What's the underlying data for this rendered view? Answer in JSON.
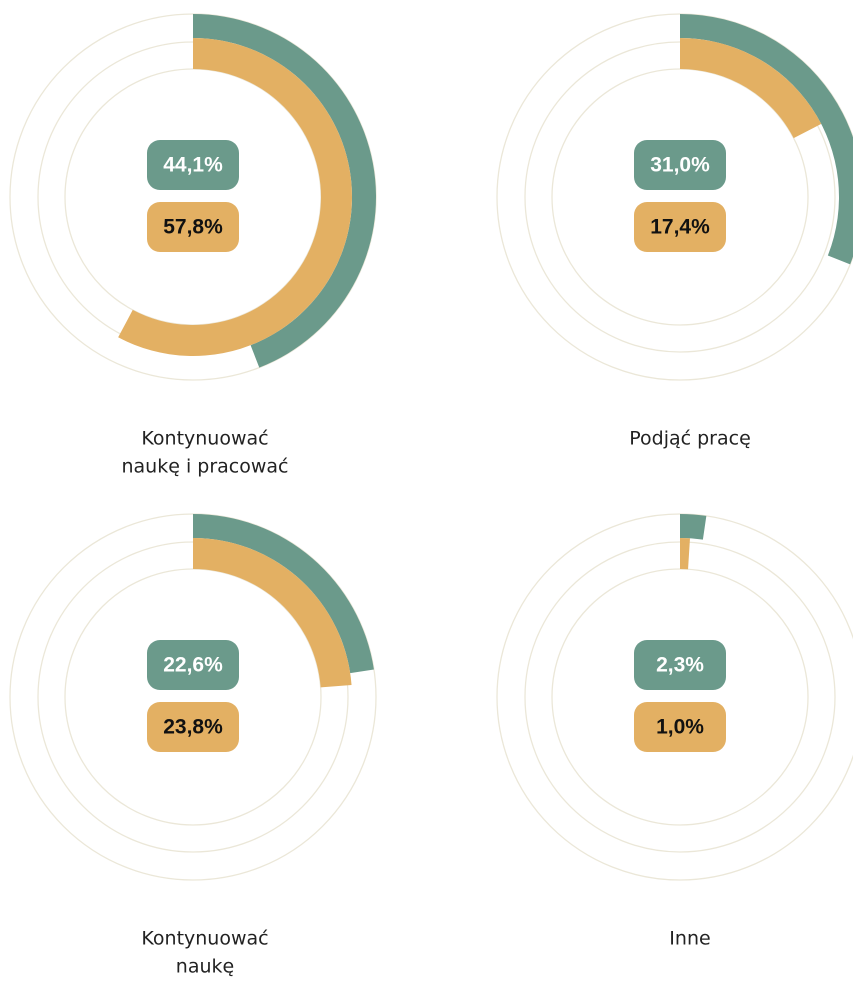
{
  "chart_data": [
    {
      "type": "radial",
      "label": [
        "Kontynuować",
        "naukę i pracować"
      ],
      "values": [
        44.1,
        57.8
      ],
      "value_labels": [
        "44,1%",
        "57,8%"
      ],
      "colors": [
        "#6b9a8b",
        "#e3b063"
      ],
      "ylim": [
        0,
        100
      ]
    },
    {
      "type": "radial",
      "label": [
        "Podjąć pracę"
      ],
      "values": [
        31.0,
        17.4
      ],
      "value_labels": [
        "31,0%",
        "17,4%"
      ],
      "colors": [
        "#6b9a8b",
        "#e3b063"
      ],
      "ylim": [
        0,
        100
      ]
    },
    {
      "type": "radial",
      "label": [
        "Kontynuować",
        "naukę"
      ],
      "values": [
        22.6,
        23.8
      ],
      "value_labels": [
        "22,6%",
        "23,8%"
      ],
      "colors": [
        "#6b9a8b",
        "#e3b063"
      ],
      "ylim": [
        0,
        100
      ]
    },
    {
      "type": "radial",
      "label": [
        "Inne"
      ],
      "values": [
        2.3,
        1.0
      ],
      "value_labels": [
        "2,3%",
        "1,0%"
      ],
      "colors": [
        "#6b9a8b",
        "#e3b063"
      ],
      "ylim": [
        0,
        100
      ]
    }
  ]
}
